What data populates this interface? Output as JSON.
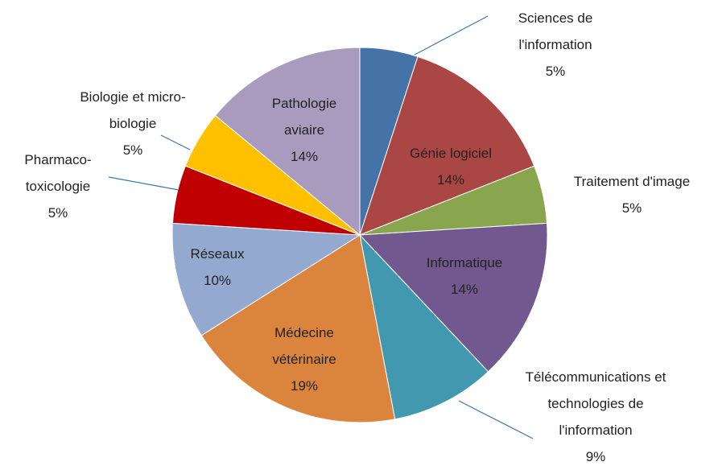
{
  "chart_data": {
    "type": "pie",
    "categories": [
      "Sciences de l'information",
      "Génie logiciel",
      "Traitement d'image",
      "Informatique",
      "Télécommunications et technologies de l'information",
      "Médecine vétérinaire",
      "Réseaux",
      "Pharmaco-toxicologie",
      "Biologie et micro-biologie",
      "Pathologie aviaire"
    ],
    "values": [
      5,
      14,
      5,
      14,
      9,
      19,
      10,
      5,
      5,
      14
    ],
    "value_labels": [
      "5%",
      "14%",
      "5%",
      "14%",
      "9%",
      "19%",
      "10%",
      "5%",
      "5%",
      "14%"
    ],
    "colors": [
      "#4572a7",
      "#aa4643",
      "#89a54e",
      "#71588f",
      "#4198af",
      "#db843d",
      "#93a9cf",
      "#c00000",
      "#ffc000",
      "#a99bbd"
    ]
  }
}
